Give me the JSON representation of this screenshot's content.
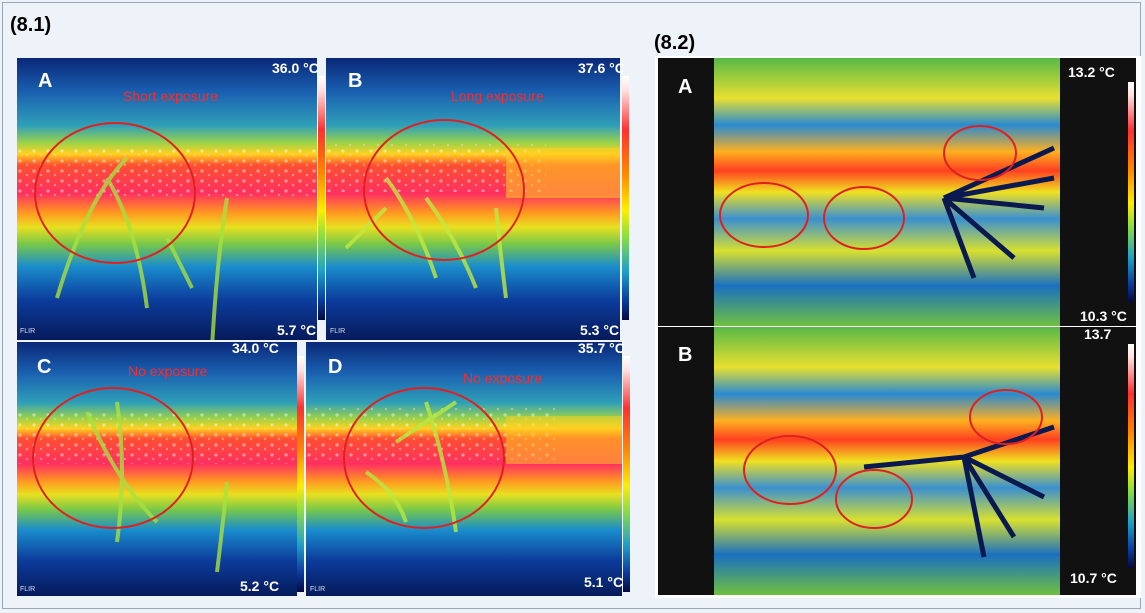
{
  "figure_8_1": {
    "label": "(8.1)",
    "panels": [
      {
        "letter": "A",
        "max_temp": "36.0 °C",
        "min_temp": "5.7 °C",
        "exposure": "Short exposure"
      },
      {
        "letter": "B",
        "max_temp": "37.6 °C",
        "min_temp": "5.3 °C",
        "exposure": "Long exposure"
      },
      {
        "letter": "C",
        "max_temp": "34.0 °C",
        "min_temp": "5.2 °C",
        "exposure": "No exposure"
      },
      {
        "letter": "D",
        "max_temp": "35.7 °C",
        "min_temp": "5.1 °C",
        "exposure": "No exposure"
      }
    ],
    "watermark": "FLIR"
  },
  "figure_8_2": {
    "label": "(8.2)",
    "panels": [
      {
        "letter": "A",
        "max_temp": "13.2 °C",
        "min_temp": "10.3 °C"
      },
      {
        "letter": "B",
        "max_temp": "13.7",
        "min_temp": "10.7 °C"
      }
    ]
  },
  "colors": {
    "background": "#eef3f9",
    "annotation_red": "#e02020",
    "thermal_hot": "#ff3050",
    "thermal_mid": "#ffe600",
    "thermal_cool": "#1aa0c0",
    "thermal_cold": "#0a2f8a"
  }
}
